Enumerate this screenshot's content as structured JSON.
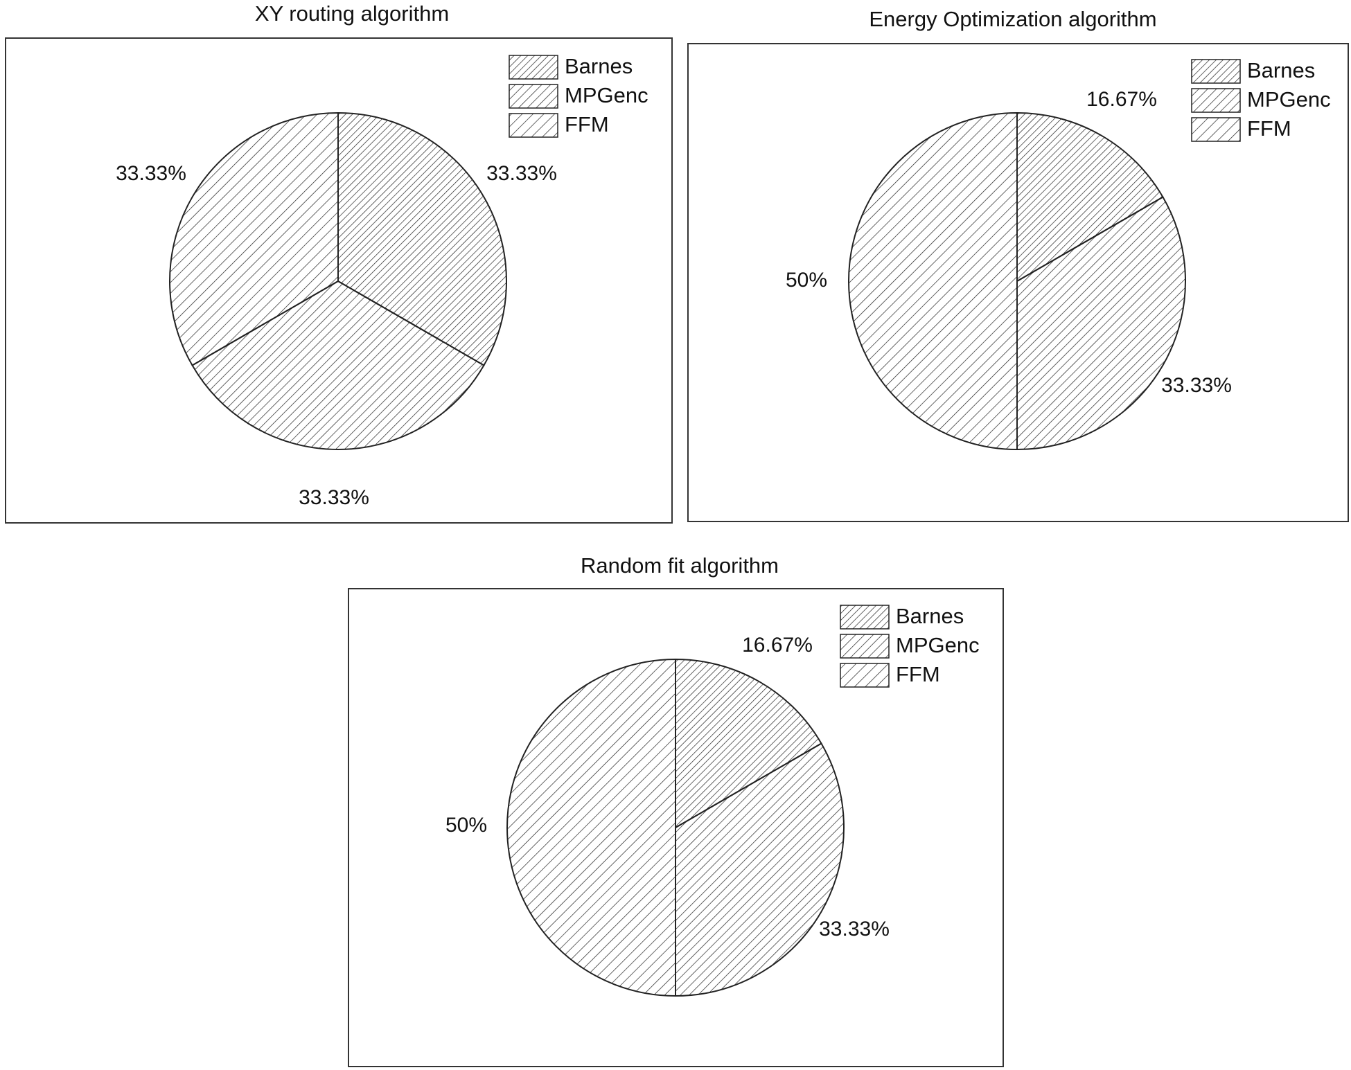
{
  "chart_data": [
    {
      "type": "pie",
      "title": "XY routing algorithm",
      "legend": {
        "placement": "top-right",
        "entries": [
          "Barnes",
          "MPGenc",
          "FFM"
        ]
      },
      "slices": [
        {
          "name": "Barnes",
          "value": 33.33,
          "label": "33.33%",
          "pattern": "dense"
        },
        {
          "name": "MPGenc",
          "value": 33.33,
          "label": "33.33%",
          "pattern": "medium"
        },
        {
          "name": "FFM",
          "value": 33.33,
          "label": "33.33%",
          "pattern": "sparse"
        }
      ]
    },
    {
      "type": "pie",
      "title": "Energy Optimization algorithm",
      "legend": {
        "placement": "top-right",
        "entries": [
          "Barnes",
          "MPGenc",
          "FFM"
        ]
      },
      "slices": [
        {
          "name": "Barnes",
          "value": 16.67,
          "label": "16.67%",
          "pattern": "dense"
        },
        {
          "name": "MPGenc",
          "value": 33.33,
          "label": "33.33%",
          "pattern": "medium"
        },
        {
          "name": "FFM",
          "value": 50,
          "label": "50%",
          "pattern": "sparse"
        }
      ]
    },
    {
      "type": "pie",
      "title": "Random fit algorithm",
      "legend": {
        "placement": "top-right",
        "entries": [
          "Barnes",
          "MPGenc",
          "FFM"
        ]
      },
      "slices": [
        {
          "name": "Barnes",
          "value": 16.67,
          "label": "16.67%",
          "pattern": "dense"
        },
        {
          "name": "MPGenc",
          "value": 33.33,
          "label": "33.33%",
          "pattern": "medium"
        },
        {
          "name": "FFM",
          "value": 50,
          "label": "50%",
          "pattern": "sparse"
        }
      ]
    }
  ],
  "colors": {
    "ink": "#111111",
    "background": "#ffffff"
  }
}
